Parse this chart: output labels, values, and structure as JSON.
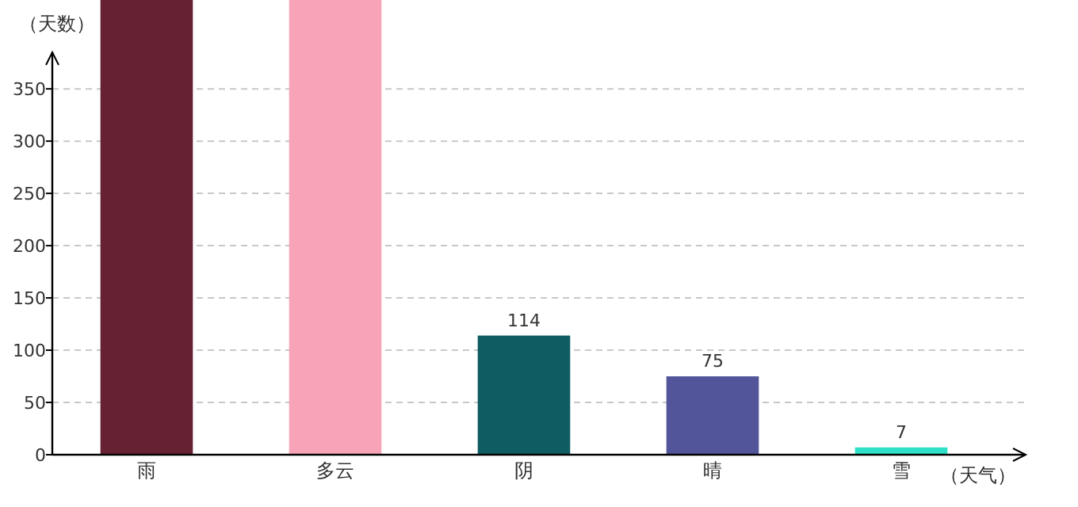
{
  "chart_data": {
    "type": "bar",
    "ylabel": "（天数）",
    "xlabel": "（天气）",
    "categories": [
      "雨",
      "多云",
      "阴",
      "晴",
      "雪"
    ],
    "values": [
      435,
      435,
      114,
      75,
      7
    ],
    "colors": [
      "#662233",
      "#f7a4b8",
      "#0f5c63",
      "#525599",
      "#2ee0c8"
    ],
    "value_labels": [
      null,
      null,
      "114",
      "75",
      "7"
    ],
    "ylim": [
      0,
      435
    ],
    "yticks": [
      0,
      50,
      100,
      150,
      200,
      250,
      300,
      350
    ],
    "grid": "y"
  }
}
